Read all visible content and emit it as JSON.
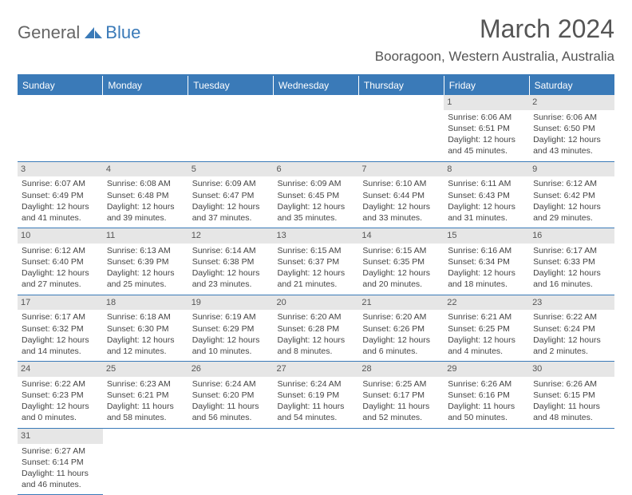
{
  "logo": {
    "text1": "General",
    "text2": "Blue"
  },
  "title": "March 2024",
  "location": "Booragoon, Western Australia, Australia",
  "colors": {
    "accent": "#3a7ab8",
    "daynum_bg": "#e6e6e6",
    "text": "#444444"
  },
  "weekdays": [
    "Sunday",
    "Monday",
    "Tuesday",
    "Wednesday",
    "Thursday",
    "Friday",
    "Saturday"
  ],
  "weeks": [
    [
      null,
      null,
      null,
      null,
      null,
      {
        "n": "1",
        "sunrise": "Sunrise: 6:06 AM",
        "sunset": "Sunset: 6:51 PM",
        "d1": "Daylight: 12 hours",
        "d2": "and 45 minutes."
      },
      {
        "n": "2",
        "sunrise": "Sunrise: 6:06 AM",
        "sunset": "Sunset: 6:50 PM",
        "d1": "Daylight: 12 hours",
        "d2": "and 43 minutes."
      }
    ],
    [
      {
        "n": "3",
        "sunrise": "Sunrise: 6:07 AM",
        "sunset": "Sunset: 6:49 PM",
        "d1": "Daylight: 12 hours",
        "d2": "and 41 minutes."
      },
      {
        "n": "4",
        "sunrise": "Sunrise: 6:08 AM",
        "sunset": "Sunset: 6:48 PM",
        "d1": "Daylight: 12 hours",
        "d2": "and 39 minutes."
      },
      {
        "n": "5",
        "sunrise": "Sunrise: 6:09 AM",
        "sunset": "Sunset: 6:47 PM",
        "d1": "Daylight: 12 hours",
        "d2": "and 37 minutes."
      },
      {
        "n": "6",
        "sunrise": "Sunrise: 6:09 AM",
        "sunset": "Sunset: 6:45 PM",
        "d1": "Daylight: 12 hours",
        "d2": "and 35 minutes."
      },
      {
        "n": "7",
        "sunrise": "Sunrise: 6:10 AM",
        "sunset": "Sunset: 6:44 PM",
        "d1": "Daylight: 12 hours",
        "d2": "and 33 minutes."
      },
      {
        "n": "8",
        "sunrise": "Sunrise: 6:11 AM",
        "sunset": "Sunset: 6:43 PM",
        "d1": "Daylight: 12 hours",
        "d2": "and 31 minutes."
      },
      {
        "n": "9",
        "sunrise": "Sunrise: 6:12 AM",
        "sunset": "Sunset: 6:42 PM",
        "d1": "Daylight: 12 hours",
        "d2": "and 29 minutes."
      }
    ],
    [
      {
        "n": "10",
        "sunrise": "Sunrise: 6:12 AM",
        "sunset": "Sunset: 6:40 PM",
        "d1": "Daylight: 12 hours",
        "d2": "and 27 minutes."
      },
      {
        "n": "11",
        "sunrise": "Sunrise: 6:13 AM",
        "sunset": "Sunset: 6:39 PM",
        "d1": "Daylight: 12 hours",
        "d2": "and 25 minutes."
      },
      {
        "n": "12",
        "sunrise": "Sunrise: 6:14 AM",
        "sunset": "Sunset: 6:38 PM",
        "d1": "Daylight: 12 hours",
        "d2": "and 23 minutes."
      },
      {
        "n": "13",
        "sunrise": "Sunrise: 6:15 AM",
        "sunset": "Sunset: 6:37 PM",
        "d1": "Daylight: 12 hours",
        "d2": "and 21 minutes."
      },
      {
        "n": "14",
        "sunrise": "Sunrise: 6:15 AM",
        "sunset": "Sunset: 6:35 PM",
        "d1": "Daylight: 12 hours",
        "d2": "and 20 minutes."
      },
      {
        "n": "15",
        "sunrise": "Sunrise: 6:16 AM",
        "sunset": "Sunset: 6:34 PM",
        "d1": "Daylight: 12 hours",
        "d2": "and 18 minutes."
      },
      {
        "n": "16",
        "sunrise": "Sunrise: 6:17 AM",
        "sunset": "Sunset: 6:33 PM",
        "d1": "Daylight: 12 hours",
        "d2": "and 16 minutes."
      }
    ],
    [
      {
        "n": "17",
        "sunrise": "Sunrise: 6:17 AM",
        "sunset": "Sunset: 6:32 PM",
        "d1": "Daylight: 12 hours",
        "d2": "and 14 minutes."
      },
      {
        "n": "18",
        "sunrise": "Sunrise: 6:18 AM",
        "sunset": "Sunset: 6:30 PM",
        "d1": "Daylight: 12 hours",
        "d2": "and 12 minutes."
      },
      {
        "n": "19",
        "sunrise": "Sunrise: 6:19 AM",
        "sunset": "Sunset: 6:29 PM",
        "d1": "Daylight: 12 hours",
        "d2": "and 10 minutes."
      },
      {
        "n": "20",
        "sunrise": "Sunrise: 6:20 AM",
        "sunset": "Sunset: 6:28 PM",
        "d1": "Daylight: 12 hours",
        "d2": "and 8 minutes."
      },
      {
        "n": "21",
        "sunrise": "Sunrise: 6:20 AM",
        "sunset": "Sunset: 6:26 PM",
        "d1": "Daylight: 12 hours",
        "d2": "and 6 minutes."
      },
      {
        "n": "22",
        "sunrise": "Sunrise: 6:21 AM",
        "sunset": "Sunset: 6:25 PM",
        "d1": "Daylight: 12 hours",
        "d2": "and 4 minutes."
      },
      {
        "n": "23",
        "sunrise": "Sunrise: 6:22 AM",
        "sunset": "Sunset: 6:24 PM",
        "d1": "Daylight: 12 hours",
        "d2": "and 2 minutes."
      }
    ],
    [
      {
        "n": "24",
        "sunrise": "Sunrise: 6:22 AM",
        "sunset": "Sunset: 6:23 PM",
        "d1": "Daylight: 12 hours",
        "d2": "and 0 minutes."
      },
      {
        "n": "25",
        "sunrise": "Sunrise: 6:23 AM",
        "sunset": "Sunset: 6:21 PM",
        "d1": "Daylight: 11 hours",
        "d2": "and 58 minutes."
      },
      {
        "n": "26",
        "sunrise": "Sunrise: 6:24 AM",
        "sunset": "Sunset: 6:20 PM",
        "d1": "Daylight: 11 hours",
        "d2": "and 56 minutes."
      },
      {
        "n": "27",
        "sunrise": "Sunrise: 6:24 AM",
        "sunset": "Sunset: 6:19 PM",
        "d1": "Daylight: 11 hours",
        "d2": "and 54 minutes."
      },
      {
        "n": "28",
        "sunrise": "Sunrise: 6:25 AM",
        "sunset": "Sunset: 6:17 PM",
        "d1": "Daylight: 11 hours",
        "d2": "and 52 minutes."
      },
      {
        "n": "29",
        "sunrise": "Sunrise: 6:26 AM",
        "sunset": "Sunset: 6:16 PM",
        "d1": "Daylight: 11 hours",
        "d2": "and 50 minutes."
      },
      {
        "n": "30",
        "sunrise": "Sunrise: 6:26 AM",
        "sunset": "Sunset: 6:15 PM",
        "d1": "Daylight: 11 hours",
        "d2": "and 48 minutes."
      }
    ],
    [
      {
        "n": "31",
        "sunrise": "Sunrise: 6:27 AM",
        "sunset": "Sunset: 6:14 PM",
        "d1": "Daylight: 11 hours",
        "d2": "and 46 minutes."
      },
      null,
      null,
      null,
      null,
      null,
      null
    ]
  ]
}
